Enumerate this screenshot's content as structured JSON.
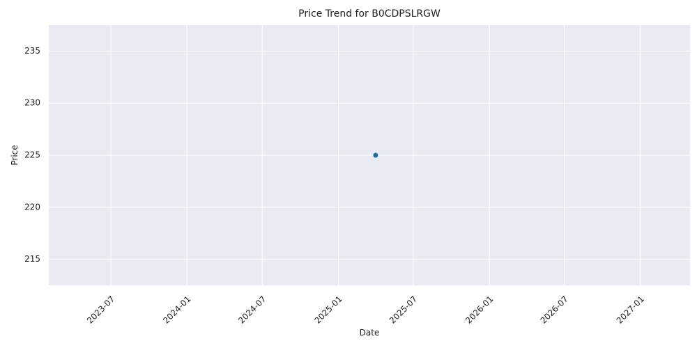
{
  "chart_data": {
    "type": "scatter",
    "title": "Price Trend for B0CDPSLRGW",
    "xlabel": "Date",
    "ylabel": "Price",
    "x_ticks": [
      "2023-07",
      "2024-01",
      "2024-07",
      "2025-01",
      "2025-07",
      "2026-01",
      "2026-07",
      "2027-01"
    ],
    "y_ticks": [
      215,
      220,
      225,
      230,
      235
    ],
    "xlim": [
      "2023-02-01",
      "2027-05-01"
    ],
    "ylim": [
      212.5,
      237.5
    ],
    "grid": true,
    "background_color": "#eaeaf2",
    "series": [
      {
        "color": "#1f6fa8",
        "points": [
          {
            "x": "2025-04-01",
            "y": 225
          }
        ]
      }
    ]
  }
}
